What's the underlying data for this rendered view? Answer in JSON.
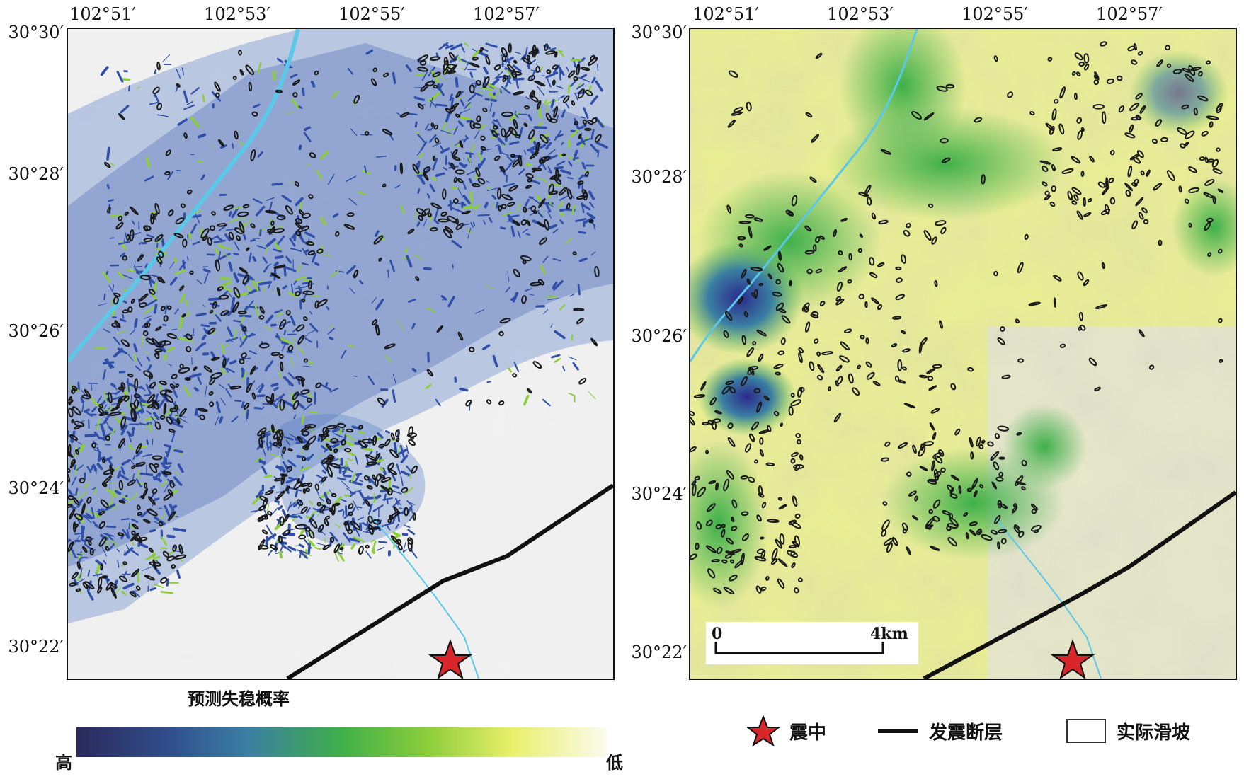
{
  "axes": {
    "x_ticks": [
      "102°51′",
      "102°53′",
      "102°55′",
      "102°57′"
    ],
    "y_ticks": [
      "30°30′",
      "30°28′",
      "30°26′",
      "30°24′",
      "30°22′"
    ]
  },
  "colorbar": {
    "title": "预测失稳概率",
    "high_label": "高",
    "low_label": "低"
  },
  "legend": {
    "epicenter": "震中",
    "fault": "发震断层",
    "landslide": "实际滑坡"
  },
  "scalebar": {
    "start_label": "0",
    "end_label": "4km"
  },
  "colors": {
    "high_prob": "#2b2a5c",
    "mid_prob": "#3fb04a",
    "low_prob": "#fbfbef",
    "landslide_outline": "#1a1a1a",
    "fault": "#111111",
    "river": "#5bc8e8",
    "epicenter_star": "#d9262b"
  },
  "icons": {
    "epicenter": "red-star-icon",
    "landslide": "polygon-outline-icon"
  }
}
